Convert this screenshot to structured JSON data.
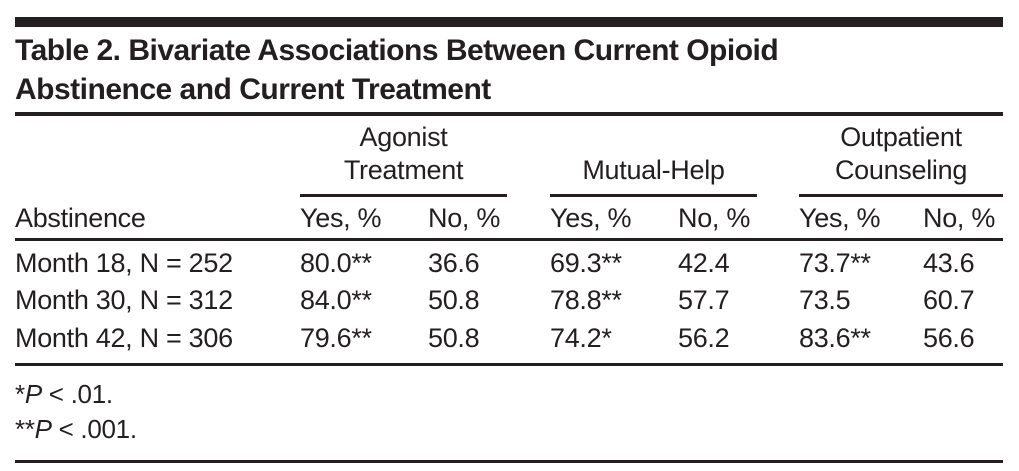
{
  "title": {
    "line1": "Table 2. Bivariate Associations Between Current Opioid",
    "line2": "Abstinence and Current Treatment"
  },
  "table": {
    "row_header_label": "Abstinence",
    "groups": [
      {
        "label": "Agonist Treatment",
        "lines": [
          "Agonist",
          "Treatment"
        ],
        "sub": [
          "Yes, %",
          "No, %"
        ]
      },
      {
        "label": "Mutual-Help",
        "lines": [
          "Mutual-Help"
        ],
        "sub": [
          "Yes, %",
          "No, %"
        ]
      },
      {
        "label": "Outpatient Counseling",
        "lines": [
          "Outpatient",
          "Counseling"
        ],
        "sub": [
          "Yes, %",
          "No, %"
        ]
      }
    ],
    "rows": [
      {
        "label": "Month 18, N = 252",
        "values": [
          "80.0**",
          "36.6",
          "69.3**",
          "42.4",
          "73.7**",
          "43.6"
        ]
      },
      {
        "label": "Month 30, N = 312",
        "values": [
          "84.0**",
          "50.8",
          "78.8**",
          "57.7",
          "73.5",
          "60.7"
        ]
      },
      {
        "label": "Month 42, N = 306",
        "values": [
          "79.6**",
          "50.8",
          "74.2*",
          "56.2",
          "83.6**",
          "56.6"
        ]
      }
    ]
  },
  "footnotes": [
    {
      "marker": "*",
      "p_label": "P",
      "rest": " < .01."
    },
    {
      "marker": "**",
      "p_label": "P",
      "rest": " < .001."
    }
  ],
  "colors": {
    "ink": "#231f20",
    "background": "#ffffff"
  }
}
